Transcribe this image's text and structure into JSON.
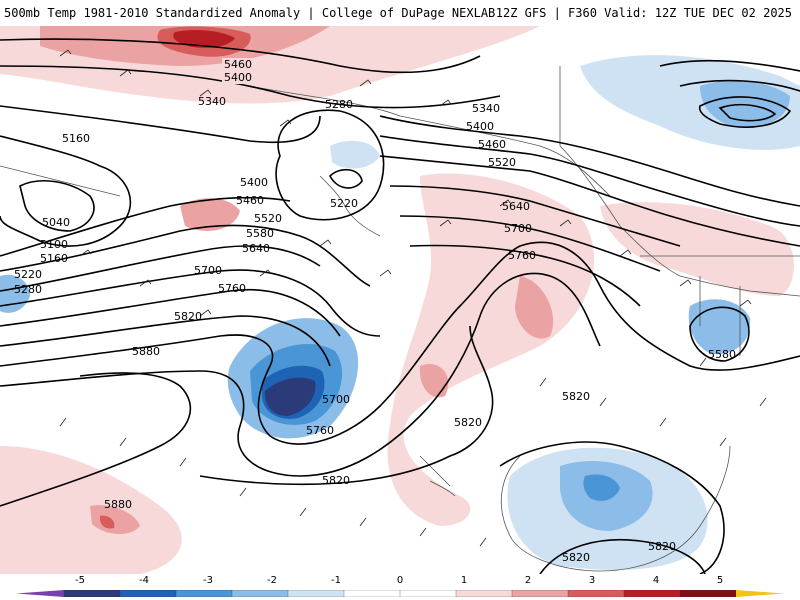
{
  "header": {
    "title": "500mb Temp 1981-2010 Standardized Anomaly | College of DuPage NEXLAB",
    "run_info": "12Z GFS | F360 Valid: 12Z TUE DEC 02 2025"
  },
  "map": {
    "height_contours": [
      "5040",
      "5100",
      "5160",
      "5160",
      "5220",
      "5220",
      "5280",
      "5280",
      "5340",
      "5340",
      "5400",
      "5400",
      "5400",
      "5460",
      "5460",
      "5460",
      "5520",
      "5520",
      "5580",
      "5580",
      "5640",
      "5640",
      "5700",
      "5700",
      "5700",
      "5760",
      "5760",
      "5760",
      "5820",
      "5820",
      "5820",
      "5820",
      "5820",
      "5880",
      "5880"
    ]
  },
  "colorbar": {
    "ticks": [
      "-5",
      "-4",
      "-3",
      "-2",
      "-1",
      "0",
      "1",
      "2",
      "3",
      "4",
      "5"
    ],
    "colors": {
      "neg_extreme": "#7a3fb0",
      "neg5": "#2b3a78",
      "neg4": "#1f63b4",
      "neg3": "#4a95d6",
      "neg2": "#8cbde8",
      "neg1": "#cfe2f3",
      "zero": "#ffffff",
      "pos1": "#f7d9d9",
      "pos2": "#eba2a2",
      "pos3": "#d85c5c",
      "pos4": "#b51f24",
      "pos5": "#7d0f14",
      "pos_extreme": "#f5c21c"
    }
  }
}
